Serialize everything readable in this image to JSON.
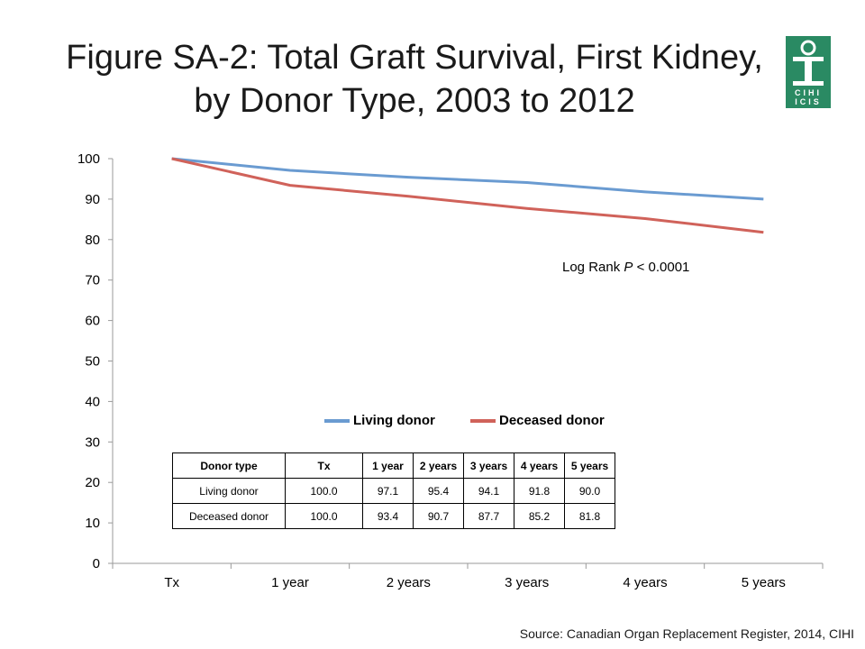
{
  "title": "Figure SA-2: Total Graft Survival, First Kidney, by Donor Type, 2003 to 2012",
  "logo": {
    "text_top": "CIHI",
    "text_bottom": "ICIS",
    "color": "#2a8a63"
  },
  "annotation": {
    "prefix": "Log Rank ",
    "italic": "P",
    "suffix": " < 0.0001"
  },
  "source": "Source: Canadian Organ Replacement Register, 2014, CIHI",
  "chart_data": {
    "type": "line",
    "categories": [
      "Tx",
      "1 year",
      "2 years",
      "3 years",
      "4 years",
      "5 years"
    ],
    "ylim": [
      0,
      100
    ],
    "yticks": [
      0,
      10,
      20,
      30,
      40,
      50,
      60,
      70,
      80,
      90,
      100
    ],
    "legend_position": "bottom-center",
    "grid": false,
    "series": [
      {
        "name": "Living donor",
        "color": "#6a9bd1",
        "values": [
          100.0,
          97.1,
          95.4,
          94.1,
          91.8,
          90.0
        ]
      },
      {
        "name": "Deceased donor",
        "color": "#d0625a",
        "values": [
          100.0,
          93.4,
          90.7,
          87.7,
          85.2,
          81.8
        ]
      }
    ]
  },
  "table": {
    "headers": [
      "Donor type",
      "Tx",
      "1 year",
      "2 years",
      "3 years",
      "4 years",
      "5 years"
    ],
    "rows": [
      [
        "Living donor",
        "100.0",
        "97.1",
        "95.4",
        "94.1",
        "91.8",
        "90.0"
      ],
      [
        "Deceased donor",
        "100.0",
        "93.4",
        "90.7",
        "87.7",
        "85.2",
        "81.8"
      ]
    ]
  }
}
